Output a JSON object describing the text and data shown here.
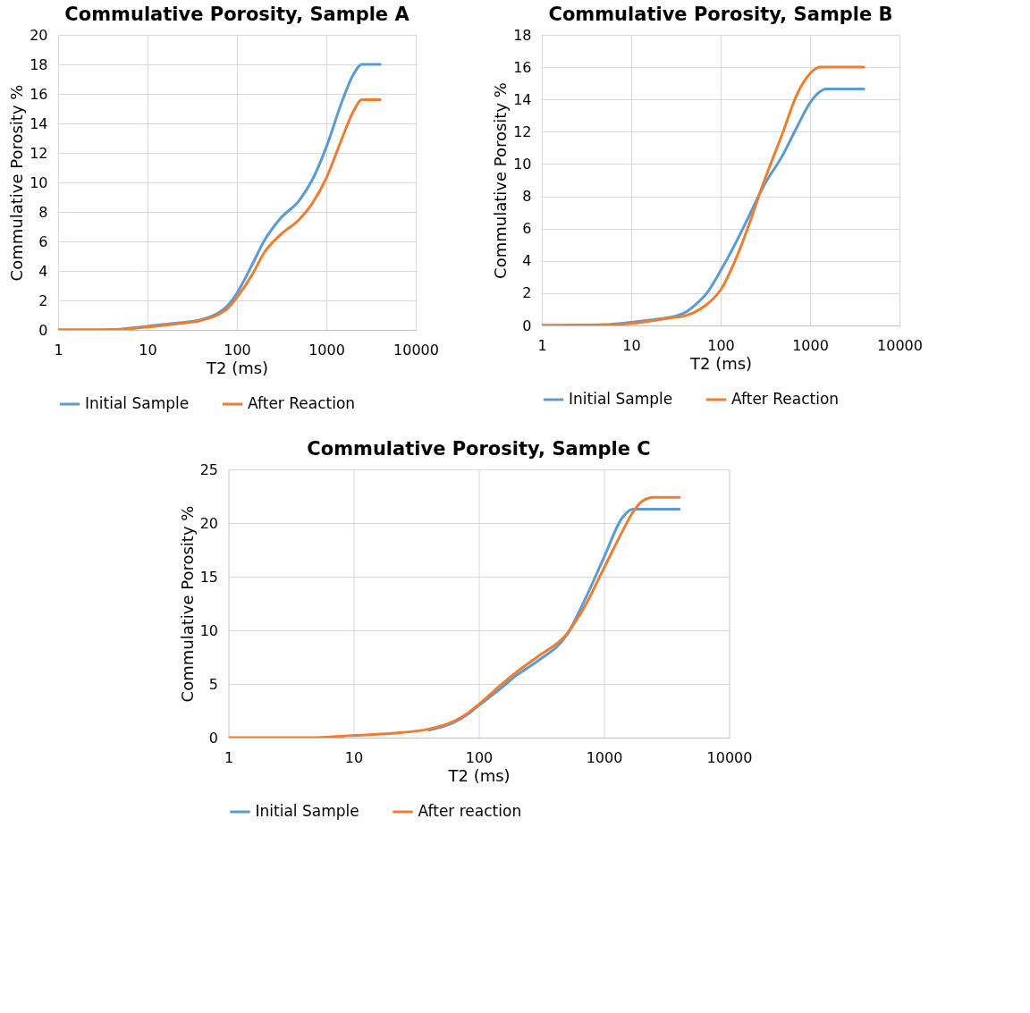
{
  "chart_data": [
    {
      "type": "line",
      "title": "Commulative Porosity, Sample A",
      "xlabel": "T2 (ms)",
      "ylabel": "Commulative Porosity %",
      "log": "x",
      "grid": true,
      "legend": "bottom",
      "xlim": [
        1,
        10000
      ],
      "xticks": [
        1,
        10,
        100,
        1000,
        10000
      ],
      "ylim": [
        0,
        20
      ],
      "yticks": [
        0,
        2,
        4,
        6,
        8,
        10,
        12,
        14,
        16,
        18,
        20
      ],
      "x": [
        1,
        3,
        5,
        10,
        20,
        40,
        60,
        80,
        100,
        150,
        200,
        300,
        500,
        700,
        1000,
        1500,
        2000,
        2500,
        4000
      ],
      "series": [
        {
          "name": "Initial Sample",
          "color": "#5b9bd5",
          "values": [
            0,
            0,
            0.05,
            0.25,
            0.45,
            0.7,
            1.1,
            1.7,
            2.5,
            4.5,
            6.0,
            7.5,
            8.8,
            10.2,
            12.4,
            15.5,
            17.3,
            18,
            18
          ]
        },
        {
          "name": "After Reaction",
          "color": "#ed7d31",
          "values": [
            0,
            0,
            0.03,
            0.2,
            0.4,
            0.65,
            1.0,
            1.5,
            2.2,
            3.8,
            5.2,
            6.4,
            7.5,
            8.6,
            10.3,
            13.0,
            14.8,
            15.6,
            15.6
          ]
        }
      ]
    },
    {
      "type": "line",
      "title": "Commulative Porosity, Sample B",
      "xlabel": "T2 (ms)",
      "ylabel": "Commulative Porosity %",
      "log": "x",
      "grid": true,
      "legend": "bottom",
      "xlim": [
        1,
        10000
      ],
      "xticks": [
        1,
        10,
        100,
        1000,
        10000
      ],
      "ylim": [
        0,
        18
      ],
      "yticks": [
        0,
        2,
        4,
        6,
        8,
        10,
        12,
        14,
        16,
        18
      ],
      "x": [
        1,
        5,
        10,
        20,
        30,
        40,
        50,
        70,
        100,
        150,
        200,
        300,
        500,
        700,
        1000,
        1300,
        1500,
        4000
      ],
      "series": [
        {
          "name": "Initial Sample",
          "color": "#5b9bd5",
          "values": [
            0,
            0.05,
            0.2,
            0.4,
            0.55,
            0.8,
            1.2,
            2.0,
            3.4,
            5.2,
            6.6,
            8.6,
            10.6,
            12.2,
            13.8,
            14.5,
            14.65,
            14.65
          ]
        },
        {
          "name": "After Reaction",
          "color": "#ed7d31",
          "values": [
            0,
            0.02,
            0.12,
            0.35,
            0.5,
            0.6,
            0.8,
            1.3,
            2.2,
            4.2,
            6.0,
            8.8,
            12.0,
            14.2,
            15.6,
            16,
            16,
            16
          ]
        }
      ]
    },
    {
      "type": "line",
      "title": "Commulative Porosity, Sample C",
      "xlabel": "T2 (ms)",
      "ylabel": "Commulative Porosity %",
      "log": "x",
      "grid": true,
      "legend": "bottom",
      "xlim": [
        1,
        10000
      ],
      "xticks": [
        1,
        10,
        100,
        1000,
        10000
      ],
      "ylim": [
        0,
        25
      ],
      "yticks": [
        0,
        5,
        10,
        15,
        20,
        25
      ],
      "x": [
        1,
        5,
        10,
        20,
        40,
        60,
        80,
        100,
        150,
        200,
        300,
        500,
        700,
        1000,
        1400,
        1700,
        2000,
        2500,
        4000
      ],
      "series": [
        {
          "name": "Initial Sample",
          "color": "#5b9bd5",
          "values": [
            null,
            null,
            null,
            null,
            0.7,
            1.3,
            2.1,
            3.0,
            4.6,
            5.8,
            7.2,
            9.5,
            12.8,
            16.8,
            20.5,
            21.3,
            21.3,
            21.3,
            21.3
          ]
        },
        {
          "name": "After reaction",
          "color": "#ed7d31",
          "values": [
            0,
            0,
            0.2,
            0.4,
            0.8,
            1.4,
            2.2,
            3.1,
            4.9,
            6.1,
            7.6,
            9.6,
            12.2,
            15.8,
            19.2,
            21.0,
            22.0,
            22.4,
            22.4
          ]
        }
      ]
    }
  ]
}
